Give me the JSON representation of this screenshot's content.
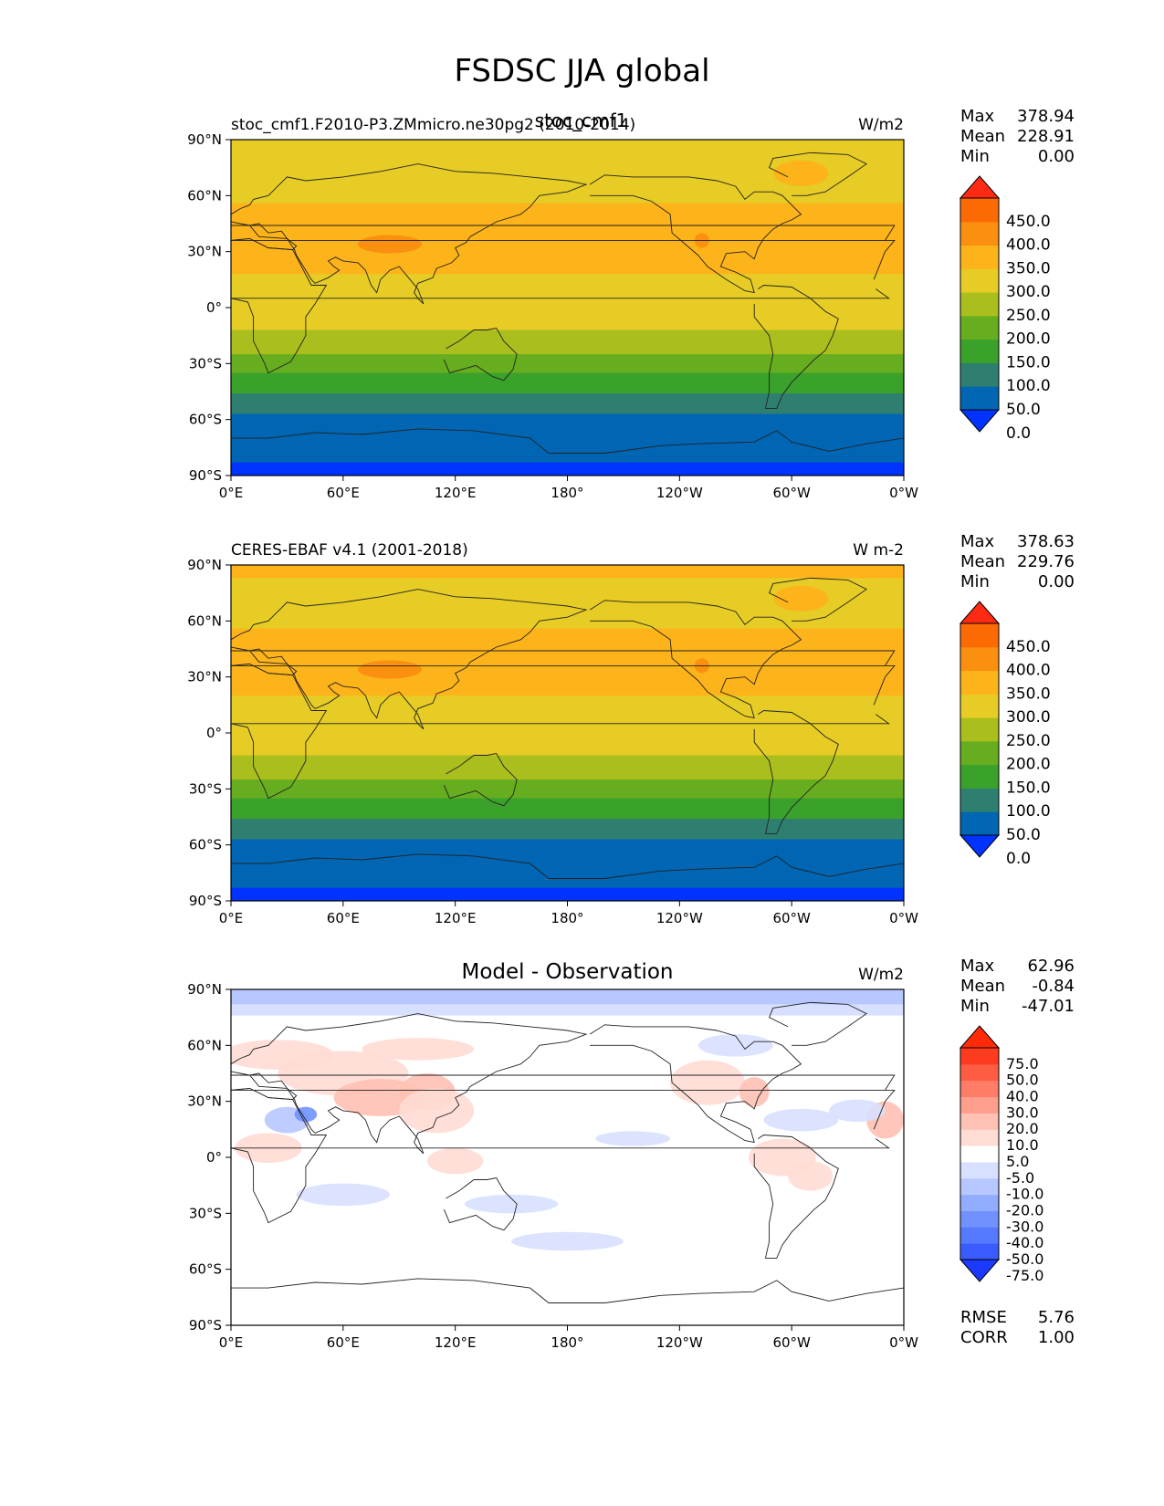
{
  "title": "FSDSC JJA global",
  "colors": {
    "mean_levels": [
      "#0033ff",
      "#0066b3",
      "#2f7f70",
      "#3aa12b",
      "#66ad1f",
      "#aabf1d",
      "#e6cc25",
      "#fdb31a",
      "#fb8f0f",
      "#fb6a03",
      "#ff2a13"
    ],
    "diff_levels": [
      "#1c3aff",
      "#3a5cff",
      "#5579ff",
      "#7191ff",
      "#92acff",
      "#b7c7ff",
      "#d8e0ff",
      "#ffffff",
      "#ffffff",
      "#ffdcd4",
      "#ffc1b4",
      "#ff9e8c",
      "#ff7d67",
      "#ff5c44",
      "#ff3b1f"
    ]
  },
  "panels": [
    {
      "left_title": "stoc_cmf1.F2010-P3.ZMmicro.ne30pg2 (2010-2014)",
      "center_title": "stoc_cmf1",
      "units": "W/m2",
      "stats": {
        "max_label": "Max",
        "max": "378.94",
        "mean_label": "Mean",
        "mean": "228.91",
        "min_label": "Min",
        "min": "0.00"
      },
      "bands": [
        {
          "lat_max": 90,
          "lat_min": 87,
          "level": 6
        },
        {
          "lat_max": 87,
          "lat_min": 70,
          "level": 6
        },
        {
          "lat_max": 70,
          "lat_min": 56,
          "level": 6
        },
        {
          "lat_max": 56,
          "lat_min": 18,
          "level": 7
        },
        {
          "lat_max": 18,
          "lat_min": 2,
          "level": 6
        },
        {
          "lat_max": 2,
          "lat_min": -12,
          "level": 6
        },
        {
          "lat_max": -12,
          "lat_min": -25,
          "level": 5
        },
        {
          "lat_max": -25,
          "lat_min": -35,
          "level": 4
        },
        {
          "lat_max": -35,
          "lat_min": -46,
          "level": 3
        },
        {
          "lat_max": -46,
          "lat_min": -57,
          "level": 2
        },
        {
          "lat_max": -57,
          "lat_min": -83,
          "level": 1
        },
        {
          "lat_max": -83,
          "lat_min": -90,
          "level": 0
        }
      ]
    },
    {
      "left_title": "CERES-EBAF v4.1 (2001-2018)",
      "center_title": "",
      "units": "W m-2",
      "stats": {
        "max_label": "Max",
        "max": "378.63",
        "mean_label": "Mean",
        "mean": "229.76",
        "min_label": "Min",
        "min": "0.00"
      },
      "bands": [
        {
          "lat_max": 90,
          "lat_min": 83,
          "level": 7
        },
        {
          "lat_max": 83,
          "lat_min": 70,
          "level": 6
        },
        {
          "lat_max": 70,
          "lat_min": 56,
          "level": 6
        },
        {
          "lat_max": 56,
          "lat_min": 20,
          "level": 7
        },
        {
          "lat_max": 20,
          "lat_min": 2,
          "level": 6
        },
        {
          "lat_max": 2,
          "lat_min": -12,
          "level": 6
        },
        {
          "lat_max": -12,
          "lat_min": -25,
          "level": 5
        },
        {
          "lat_max": -25,
          "lat_min": -35,
          "level": 4
        },
        {
          "lat_max": -35,
          "lat_min": -46,
          "level": 3
        },
        {
          "lat_max": -46,
          "lat_min": -57,
          "level": 2
        },
        {
          "lat_max": -57,
          "lat_min": -83,
          "level": 1
        },
        {
          "lat_max": -83,
          "lat_min": -90,
          "level": 0
        }
      ]
    },
    {
      "left_title": "",
      "center_title": "Model - Observation",
      "units": "W/m2",
      "stats": {
        "max_label": "Max",
        "max": "62.96",
        "mean_label": "Mean",
        "mean": "-0.84",
        "min_label": "Min",
        "min": "-47.01"
      },
      "rmse_label": "RMSE",
      "rmse": "5.76",
      "corr_label": "CORR",
      "corr": "1.00",
      "bands": [
        {
          "lat_max": 90,
          "lat_min": 82,
          "level": 5
        },
        {
          "lat_max": 82,
          "lat_min": 76,
          "level": 6
        },
        {
          "lat_max": 76,
          "lat_min": -90,
          "level": 7
        }
      ],
      "blobs": [
        {
          "lon": 25,
          "lat": 55,
          "rlon": 30,
          "rlat": 8,
          "level": 9
        },
        {
          "lon": 60,
          "lat": 45,
          "rlon": 35,
          "rlat": 12,
          "level": 9
        },
        {
          "lon": 80,
          "lat": 32,
          "rlon": 25,
          "rlat": 10,
          "level": 10
        },
        {
          "lon": 105,
          "lat": 35,
          "rlon": 15,
          "rlat": 10,
          "level": 10
        },
        {
          "lon": 110,
          "lat": 25,
          "rlon": 20,
          "rlat": 12,
          "level": 9
        },
        {
          "lon": 20,
          "lat": 5,
          "rlon": 18,
          "rlat": 8,
          "level": 9
        },
        {
          "lon": 30,
          "lat": 20,
          "rlon": 12,
          "rlat": 7,
          "level": 5
        },
        {
          "lon": 40,
          "lat": 23,
          "rlon": 6,
          "rlat": 4,
          "level": 3
        },
        {
          "lon": 255,
          "lat": 40,
          "rlon": 20,
          "rlat": 12,
          "level": 9
        },
        {
          "lon": 280,
          "lat": 35,
          "rlon": 8,
          "rlat": 8,
          "level": 10
        },
        {
          "lon": 295,
          "lat": 0,
          "rlon": 18,
          "rlat": 10,
          "level": 9
        },
        {
          "lon": 310,
          "lat": -10,
          "rlon": 12,
          "rlat": 8,
          "level": 9
        },
        {
          "lon": 350,
          "lat": 20,
          "rlon": 10,
          "rlat": 10,
          "level": 10
        },
        {
          "lon": 120,
          "lat": -2,
          "rlon": 15,
          "rlat": 7,
          "level": 9
        },
        {
          "lon": 60,
          "lat": -20,
          "rlon": 25,
          "rlat": 6,
          "level": 6
        },
        {
          "lon": 150,
          "lat": -25,
          "rlon": 25,
          "rlat": 5,
          "level": 6
        },
        {
          "lon": 180,
          "lat": -45,
          "rlon": 30,
          "rlat": 5,
          "level": 6
        },
        {
          "lon": 215,
          "lat": 10,
          "rlon": 20,
          "rlat": 4,
          "level": 6
        },
        {
          "lon": 305,
          "lat": 20,
          "rlon": 20,
          "rlat": 6,
          "level": 6
        },
        {
          "lon": 335,
          "lat": 25,
          "rlon": 15,
          "rlat": 6,
          "level": 6
        },
        {
          "lon": 270,
          "lat": 60,
          "rlon": 20,
          "rlat": 6,
          "level": 6
        },
        {
          "lon": 100,
          "lat": 58,
          "rlon": 30,
          "rlat": 6,
          "level": 9
        }
      ]
    }
  ],
  "mean_colorbar": {
    "labels": [
      "450.0",
      "400.0",
      "350.0",
      "300.0",
      "250.0",
      "200.0",
      "150.0",
      "100.0",
      "50.0",
      "0.0"
    ]
  },
  "diff_colorbar": {
    "labels": [
      "75.0",
      "50.0",
      "40.0",
      "30.0",
      "20.0",
      "10.0",
      "5.0",
      "-5.0",
      "-10.0",
      "-20.0",
      "-30.0",
      "-40.0",
      "-50.0",
      "-75.0"
    ]
  },
  "x_ticks": [
    "0°E",
    "60°E",
    "120°E",
    "180°",
    "120°W",
    "60°W",
    "0°W"
  ],
  "y_ticks": [
    "90°N",
    "60°N",
    "30°N",
    "0°",
    "30°S",
    "60°S",
    "90°S"
  ],
  "chart_data": [
    {
      "type": "heatmap",
      "title": "stoc_cmf1",
      "subtitle": "stoc_cmf1.F2010-P3.ZMmicro.ne30pg2 (2010-2014)",
      "units": "W/m2",
      "x_range": [
        0,
        360
      ],
      "y_range": [
        -90,
        90
      ],
      "colorbar_levels": [
        0,
        50,
        100,
        150,
        200,
        250,
        300,
        350,
        400,
        450
      ],
      "stats": {
        "max": 378.94,
        "mean": 228.91,
        "min": 0.0
      }
    },
    {
      "type": "heatmap",
      "title": "CERES-EBAF v4.1 (2001-2018)",
      "units": "W m-2",
      "x_range": [
        0,
        360
      ],
      "y_range": [
        -90,
        90
      ],
      "colorbar_levels": [
        0,
        50,
        100,
        150,
        200,
        250,
        300,
        350,
        400,
        450
      ],
      "stats": {
        "max": 378.63,
        "mean": 229.76,
        "min": 0.0
      }
    },
    {
      "type": "heatmap",
      "title": "Model - Observation",
      "units": "W/m2",
      "x_range": [
        0,
        360
      ],
      "y_range": [
        -90,
        90
      ],
      "colorbar_levels": [
        -75,
        -50,
        -40,
        -30,
        -20,
        -10,
        -5,
        5,
        10,
        20,
        30,
        40,
        50,
        75
      ],
      "stats": {
        "max": 62.96,
        "mean": -0.84,
        "min": -47.01,
        "rmse": 5.76,
        "corr": 1.0
      }
    }
  ]
}
